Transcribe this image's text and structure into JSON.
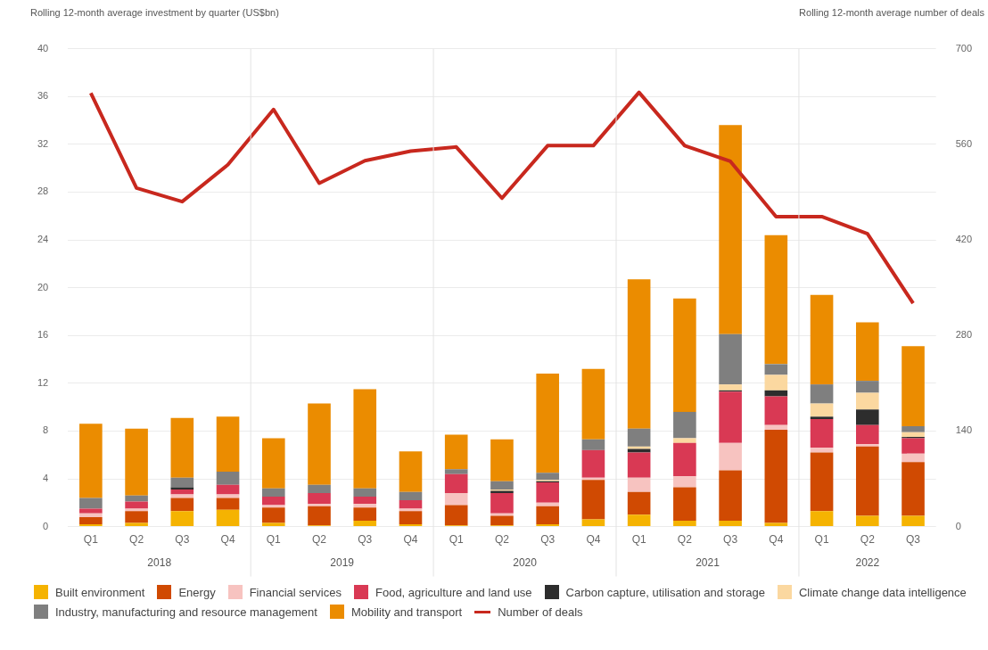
{
  "chart_data": {
    "type": "bar",
    "stacked": true,
    "ylabel": "Rolling 12-month average investment by quarter (US$bn)",
    "y2label": "Rolling 12-month average number of deals",
    "categories": [
      "Q1",
      "Q2",
      "Q3",
      "Q4",
      "Q1",
      "Q2",
      "Q3",
      "Q4",
      "Q1",
      "Q2",
      "Q3",
      "Q4",
      "Q1",
      "Q2",
      "Q3",
      "Q4",
      "Q1",
      "Q2",
      "Q3"
    ],
    "annotations": [
      "2018",
      "2019",
      "2020",
      "2021",
      "2022"
    ],
    "ylim": [
      0,
      40
    ],
    "yticks": [
      0,
      4,
      8,
      12,
      16,
      20,
      24,
      28,
      32,
      36,
      40
    ],
    "y2lim": [
      0,
      700
    ],
    "y2ticks": [
      0,
      140,
      280,
      420,
      560,
      700
    ],
    "grid": "y",
    "legend": "bottom",
    "series": [
      {
        "name": "Built environment",
        "color": "#f5b301",
        "values": [
          0.2,
          0.3,
          1.3,
          1.4,
          0.3,
          0.1,
          0.5,
          0.2,
          0.1,
          0.1,
          0.2,
          0.6,
          1.0,
          0.5,
          0.5,
          0.3,
          1.3,
          0.9,
          0.9
        ]
      },
      {
        "name": "Energy",
        "color": "#d04a02",
        "values": [
          0.6,
          1.0,
          1.1,
          1.0,
          1.3,
          1.6,
          1.1,
          1.1,
          1.7,
          0.8,
          1.5,
          3.3,
          1.9,
          2.8,
          4.2,
          7.8,
          4.9,
          5.8,
          4.5
        ]
      },
      {
        "name": "Financial services",
        "color": "#f7c3c0",
        "values": [
          0.3,
          0.2,
          0.3,
          0.3,
          0.2,
          0.2,
          0.3,
          0.2,
          1.0,
          0.2,
          0.3,
          0.2,
          1.2,
          0.9,
          2.3,
          0.4,
          0.4,
          0.2,
          0.7
        ]
      },
      {
        "name": "Food, agriculture and land use",
        "color": "#d93954",
        "values": [
          0.4,
          0.6,
          0.4,
          0.8,
          0.7,
          0.9,
          0.6,
          0.7,
          1.6,
          1.7,
          1.7,
          2.3,
          2.1,
          2.8,
          4.3,
          2.4,
          2.4,
          1.6,
          1.3
        ]
      },
      {
        "name": "Carbon capture, utilisation and storage",
        "color": "#2d2d2d",
        "values": [
          0,
          0,
          0.2,
          0,
          0,
          0,
          0,
          0,
          0,
          0.2,
          0.1,
          0,
          0.3,
          0,
          0.1,
          0.5,
          0.2,
          1.3,
          0.1
        ]
      },
      {
        "name": "Climate change data intelligence",
        "color": "#fbd8a0",
        "values": [
          0,
          0,
          0,
          0,
          0,
          0,
          0,
          0,
          0,
          0.1,
          0.1,
          0,
          0.2,
          0.4,
          0.5,
          1.3,
          1.1,
          1.4,
          0.4
        ]
      },
      {
        "name": "Industry, manufacturing and resource management",
        "color": "#7f7f7f",
        "values": [
          0.9,
          0.5,
          0.8,
          1.1,
          0.7,
          0.7,
          0.7,
          0.7,
          0.4,
          0.7,
          0.6,
          0.9,
          1.5,
          2.2,
          4.2,
          0.9,
          1.6,
          1.0,
          0.5
        ]
      },
      {
        "name": "Mobility and transport",
        "color": "#eb8c00",
        "values": [
          6.2,
          5.6,
          5.0,
          4.6,
          4.2,
          6.8,
          8.3,
          3.4,
          2.9,
          3.5,
          8.3,
          5.9,
          12.5,
          9.5,
          17.5,
          10.8,
          7.5,
          4.9,
          6.7
        ]
      },
      {
        "name": "Number of deals",
        "type": "line",
        "axis": "y2",
        "color": "#c8281e",
        "values": [
          635,
          496,
          476,
          530,
          611,
          503,
          536,
          550,
          556,
          481,
          558,
          558,
          636,
          558,
          535,
          454,
          454,
          429,
          327
        ]
      }
    ]
  }
}
